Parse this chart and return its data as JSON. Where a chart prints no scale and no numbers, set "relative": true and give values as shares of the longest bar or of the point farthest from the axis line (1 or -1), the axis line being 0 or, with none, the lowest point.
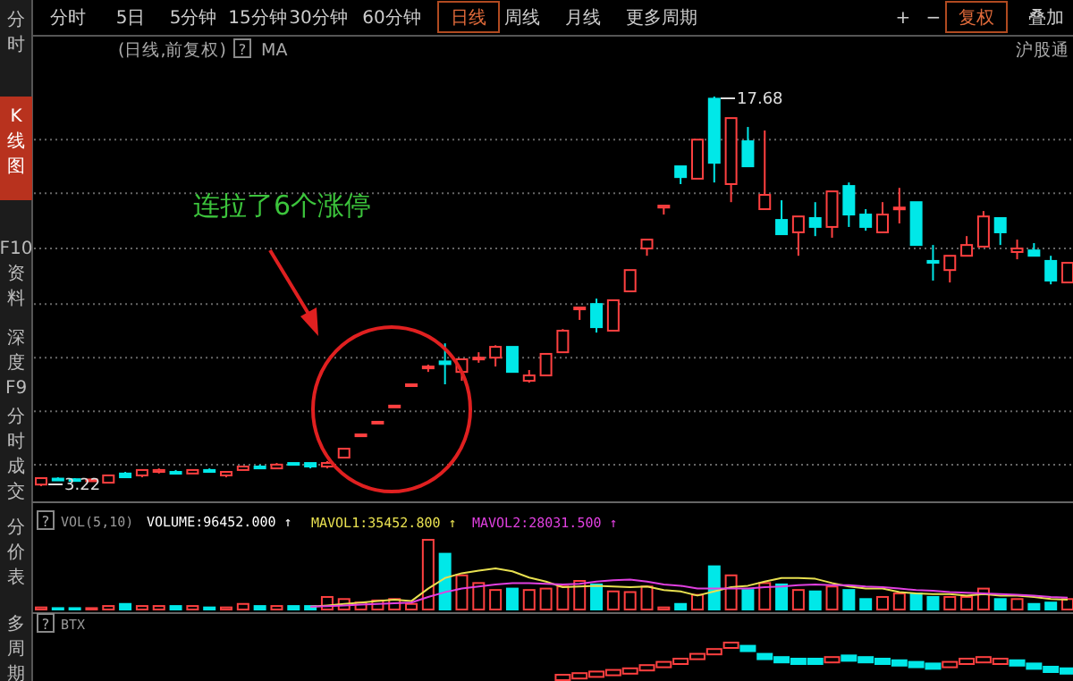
{
  "chart_data": [
    {
      "type": "candlestick",
      "categories": [
        null,
        null,
        null,
        null,
        null,
        null,
        null,
        null,
        null,
        null,
        null,
        null,
        null,
        null,
        null,
        null,
        null,
        null,
        null,
        null,
        null,
        null,
        null,
        null,
        null,
        null,
        null,
        null,
        null,
        null,
        null,
        null,
        null,
        null,
        null,
        null,
        null,
        null,
        null,
        null,
        null,
        null,
        null,
        null,
        null,
        null,
        null,
        null,
        null,
        null,
        null,
        null,
        null,
        null,
        null,
        null,
        null,
        null,
        null,
        null,
        null,
        null
      ],
      "ohlc": [
        [
          3.28,
          3.55,
          3.22,
          3.52
        ],
        [
          3.5,
          3.55,
          3.45,
          3.48
        ],
        [
          3.48,
          3.52,
          3.42,
          3.45
        ],
        [
          3.45,
          3.5,
          3.4,
          3.47
        ],
        [
          3.35,
          3.62,
          3.35,
          3.62
        ],
        [
          3.69,
          3.75,
          3.55,
          3.55
        ],
        [
          3.62,
          3.82,
          3.55,
          3.82
        ],
        [
          3.75,
          3.88,
          3.69,
          3.82
        ],
        [
          3.75,
          3.82,
          3.69,
          3.69
        ],
        [
          3.69,
          3.82,
          3.69,
          3.82
        ],
        [
          3.82,
          3.88,
          3.75,
          3.75
        ],
        [
          3.62,
          3.75,
          3.55,
          3.75
        ],
        [
          3.82,
          3.95,
          3.82,
          3.95
        ],
        [
          3.95,
          4.02,
          3.88,
          3.88
        ],
        [
          3.88,
          4.08,
          3.88,
          4.02
        ],
        [
          4.08,
          4.08,
          4.02,
          4.02
        ],
        [
          4.08,
          4.08,
          3.88,
          3.95
        ],
        [
          3.95,
          4.15,
          3.88,
          4.08
        ],
        [
          4.28,
          4.61,
          4.28,
          4.61
        ],
        [
          5.14,
          5.14,
          5.14,
          5.14
        ],
        [
          5.61,
          5.61,
          5.61,
          5.61
        ],
        [
          6.21,
          6.21,
          6.21,
          6.21
        ],
        [
          7.0,
          7.0,
          7.0,
          7.0
        ],
        [
          7.6,
          7.73,
          7.46,
          7.66
        ],
        [
          7.85,
          8.52,
          7.0,
          7.75
        ],
        [
          7.46,
          7.93,
          7.13,
          7.93
        ],
        [
          7.93,
          8.19,
          7.8,
          7.99
        ],
        [
          7.99,
          8.45,
          7.66,
          8.39
        ],
        [
          8.39,
          8.39,
          7.46,
          7.46
        ],
        [
          7.13,
          7.53,
          7.06,
          7.33
        ],
        [
          7.33,
          8.13,
          7.33,
          8.13
        ],
        [
          8.19,
          9.05,
          8.19,
          8.99
        ],
        [
          9.79,
          9.85,
          9.39,
          9.85
        ],
        [
          9.98,
          10.18,
          8.92,
          9.12
        ],
        [
          8.99,
          10.12,
          8.99,
          10.12
        ],
        [
          10.45,
          11.24,
          10.45,
          11.24
        ],
        [
          12.04,
          12.37,
          11.77,
          12.37
        ],
        [
          13.56,
          13.63,
          13.3,
          13.63
        ],
        [
          15.09,
          15.09,
          14.43,
          14.69
        ],
        [
          14.63,
          16.08,
          14.63,
          16.08
        ],
        [
          17.6,
          17.68,
          14.49,
          15.22
        ],
        [
          14.43,
          16.88,
          13.76,
          16.88
        ],
        [
          16.02,
          16.55,
          15.09,
          15.09
        ],
        [
          13.5,
          16.42,
          13.5,
          14.03
        ],
        [
          13.1,
          13.83,
          12.57,
          12.57
        ],
        [
          12.64,
          13.23,
          11.77,
          13.23
        ],
        [
          13.17,
          13.76,
          12.5,
          12.84
        ],
        [
          12.84,
          14.16,
          12.44,
          14.16
        ],
        [
          14.36,
          14.49,
          12.84,
          13.3
        ],
        [
          13.3,
          13.5,
          12.7,
          12.84
        ],
        [
          12.64,
          13.76,
          12.64,
          13.3
        ],
        [
          13.5,
          14.29,
          12.97,
          13.56
        ],
        [
          13.76,
          13.76,
          12.17,
          12.17
        ],
        [
          11.58,
          12.17,
          10.85,
          11.51
        ],
        [
          11.24,
          11.77,
          10.78,
          11.77
        ],
        [
          11.77,
          12.5,
          11.77,
          12.17
        ],
        [
          12.11,
          13.43,
          12.11,
          13.23
        ],
        [
          13.17,
          13.17,
          12.17,
          12.64
        ],
        [
          11.91,
          12.37,
          11.64,
          12.04
        ],
        [
          11.97,
          12.24,
          11.77,
          11.77
        ],
        [
          11.58,
          11.77,
          10.71,
          10.85
        ],
        [
          10.78,
          11.51,
          10.78,
          11.51
        ]
      ],
      "colors": [
        "#ff4040",
        "#00e8e8",
        "#00e8e8",
        "#ff4040",
        "#ff4040",
        "#00e8e8",
        "#ff4040",
        "#ff4040",
        "#00e8e8",
        "#ff4040",
        "#00e8e8",
        "#ff4040",
        "#ff4040",
        "#00e8e8",
        "#ff4040",
        "#00e8e8",
        "#00e8e8",
        "#ff4040",
        "#ff4040",
        "#ff4040",
        "#ff4040",
        "#ff4040",
        "#ff4040",
        "#ff4040",
        "#00e8e8",
        "#ff4040",
        "#ff4040",
        "#ff4040",
        "#00e8e8",
        "#ff4040",
        "#ff4040",
        "#ff4040",
        "#ff4040",
        "#00e8e8",
        "#ff4040",
        "#ff4040",
        "#ff4040",
        "#ff4040",
        "#00e8e8",
        "#ff4040",
        "#00e8e8",
        "#ff4040",
        "#00e8e8",
        "#ff4040",
        "#00e8e8",
        "#ff4040",
        "#00e8e8",
        "#ff4040",
        "#00e8e8",
        "#00e8e8",
        "#ff4040",
        "#ff4040",
        "#00e8e8",
        "#00e8e8",
        "#ff4040",
        "#ff4040",
        "#ff4040",
        "#00e8e8",
        "#ff4040",
        "#00e8e8",
        "#00e8e8",
        "#ff4040"
      ],
      "grid": "y",
      "yticks": [
        {
          "value": 4.02,
          "label": null
        },
        {
          "value": 6.0,
          "label": null
        },
        {
          "value": 7.99,
          "label": null
        },
        {
          "value": 9.98,
          "label": null
        },
        {
          "value": 12.04,
          "label": null
        },
        {
          "value": 14.09,
          "label": null
        },
        {
          "value": 16.08,
          "label": null
        }
      ],
      "annotations": [
        "分时",
        "5日",
        "5分钟",
        "15分钟",
        "30分钟",
        "60分钟",
        "日线",
        "周线",
        "月线",
        "更多周期",
        "+",
        "−",
        "复权",
        "叠加",
        "分时",
        "K线图",
        "F10资料",
        "深度F9",
        "分时成交",
        "分价表",
        "多周期",
        "(日线,前复权)",
        "?",
        "MA",
        "沪股通",
        "连拉了6个涨停",
        "3.22",
        "17.68"
      ]
    },
    {
      "type": "bar",
      "relative": true,
      "title": "VOL(5,10)",
      "annotations": [
        "?",
        "VOLUME:96452.000 ↑"
      ],
      "legend": "top left",
      "categories": [
        null,
        null,
        null,
        null,
        null,
        null,
        null,
        null,
        null,
        null,
        null,
        null,
        null,
        null,
        null,
        null,
        null,
        null,
        null,
        null,
        null,
        null,
        null,
        null,
        null,
        null,
        null,
        null,
        null,
        null,
        null,
        null,
        null,
        null,
        null,
        null,
        null,
        null,
        null,
        null,
        null,
        null,
        null,
        null,
        null,
        null,
        null,
        null,
        null,
        null,
        null,
        null,
        null,
        null,
        null,
        null,
        null,
        null,
        null,
        null,
        null,
        null
      ],
      "series": [
        {
          "colors": [
            "#ff4040",
            "#00e8e8",
            "#00e8e8",
            "#ff4040",
            "#ff4040",
            "#00e8e8",
            "#ff4040",
            "#ff4040",
            "#00e8e8",
            "#ff4040",
            "#00e8e8",
            "#ff4040",
            "#ff4040",
            "#00e8e8",
            "#ff4040",
            "#00e8e8",
            "#00e8e8",
            "#ff4040",
            "#ff4040",
            "#ff4040",
            "#ff4040",
            "#ff4040",
            "#ff4040",
            "#ff4040",
            "#00e8e8",
            "#ff4040",
            "#ff4040",
            "#ff4040",
            "#00e8e8",
            "#ff4040",
            "#ff4040",
            "#ff4040",
            "#ff4040",
            "#00e8e8",
            "#ff4040",
            "#ff4040",
            "#ff4040",
            "#ff4040",
            "#00e8e8",
            "#ff4040",
            "#00e8e8",
            "#ff4040",
            "#00e8e8",
            "#ff4040",
            "#00e8e8",
            "#ff4040",
            "#00e8e8",
            "#ff4040",
            "#00e8e8",
            "#00e8e8",
            "#ff4040",
            "#ff4040",
            "#00e8e8",
            "#00e8e8",
            "#ff4040",
            "#ff4040",
            "#ff4040",
            "#00e8e8",
            "#ff4040",
            "#00e8e8",
            "#00e8e8",
            "#ff4040"
          ],
          "values": [
            0.03,
            0.02,
            0.02,
            0.02,
            0.05,
            0.08,
            0.05,
            0.05,
            0.05,
            0.05,
            0.03,
            0.03,
            0.08,
            0.05,
            0.05,
            0.05,
            0.05,
            0.18,
            0.15,
            0.1,
            0.13,
            0.15,
            0.08,
            1,
            0.8,
            0.49,
            0.38,
            0.28,
            0.3,
            0.28,
            0.3,
            0.33,
            0.41,
            0.36,
            0.26,
            0.25,
            0.33,
            0.03,
            0.08,
            0.21,
            0.62,
            0.49,
            0.28,
            0.38,
            0.36,
            0.28,
            0.26,
            0.33,
            0.28,
            0.15,
            0.18,
            0.23,
            0.23,
            0.18,
            0.18,
            0.18,
            0.3,
            0.15,
            0.15,
            0.08,
            0.1,
            0.15
          ]
        },
        {
          "type": "line",
          "name": "MAVOL1:35452.800 ↑",
          "color": "#e8e050",
          "values": [
            null,
            null,
            null,
            null,
            null,
            null,
            null,
            null,
            null,
            null,
            null,
            null,
            null,
            null,
            null,
            null,
            0.04,
            0.06,
            0.08,
            0.1,
            0.12,
            0.14,
            0.12,
            0.3,
            0.45,
            0.52,
            0.56,
            0.59,
            0.55,
            0.46,
            0.4,
            0.32,
            0.33,
            0.34,
            0.33,
            0.32,
            0.33,
            0.28,
            0.26,
            0.2,
            0.26,
            0.32,
            0.34,
            0.4,
            0.45,
            0.45,
            0.44,
            0.38,
            0.33,
            0.3,
            0.3,
            0.25,
            0.23,
            0.22,
            0.22,
            0.2,
            0.22,
            0.2,
            0.2,
            0.18,
            0.15,
            0.14
          ]
        },
        {
          "type": "line",
          "name": "MAVOL2:28031.500 ↑",
          "color": "#e040e0",
          "values": [
            null,
            null,
            null,
            null,
            null,
            null,
            null,
            null,
            null,
            null,
            null,
            null,
            null,
            null,
            null,
            null,
            0.04,
            0.05,
            0.06,
            0.07,
            0.08,
            0.09,
            0.1,
            0.18,
            0.25,
            0.3,
            0.33,
            0.36,
            0.38,
            0.38,
            0.37,
            0.36,
            0.37,
            0.4,
            0.42,
            0.43,
            0.4,
            0.36,
            0.34,
            0.3,
            0.3,
            0.3,
            0.3,
            0.32,
            0.33,
            0.35,
            0.36,
            0.35,
            0.35,
            0.33,
            0.32,
            0.3,
            0.28,
            0.27,
            0.25,
            0.24,
            0.23,
            0.22,
            0.21,
            0.2,
            0.18,
            0.17
          ]
        }
      ]
    },
    {
      "type": "scatter",
      "relative": true,
      "title": "BTX",
      "annotations": [
        "?"
      ],
      "marker": "square",
      "categories": [
        null,
        null,
        null,
        null,
        null,
        null,
        null,
        null,
        null,
        null,
        null,
        null,
        null,
        null,
        null,
        null,
        null,
        null,
        null,
        null,
        null,
        null,
        null,
        null,
        null,
        null,
        null,
        null,
        null,
        null,
        null,
        null,
        null,
        null,
        null,
        null,
        null,
        null,
        null,
        null,
        null,
        null,
        null,
        null,
        null,
        null,
        null,
        null,
        null,
        null,
        null,
        null,
        null,
        null,
        null,
        null,
        null,
        null,
        null,
        null,
        null,
        null
      ],
      "values": [
        null,
        null,
        null,
        null,
        null,
        null,
        null,
        null,
        null,
        null,
        null,
        null,
        null,
        null,
        null,
        null,
        null,
        null,
        null,
        null,
        null,
        null,
        null,
        null,
        null,
        null,
        null,
        null,
        null,
        null,
        null,
        0,
        0.05,
        0.1,
        0.15,
        0.2,
        0.3,
        0.4,
        0.5,
        0.65,
        0.8,
        1,
        0.9,
        0.65,
        0.55,
        0.5,
        0.5,
        0.55,
        0.6,
        0.55,
        0.5,
        0.45,
        0.4,
        0.35,
        0.4,
        0.5,
        0.55,
        0.5,
        0.45,
        0.35,
        0.25,
        0.2
      ],
      "colors": [
        null,
        null,
        null,
        null,
        null,
        null,
        null,
        null,
        null,
        null,
        null,
        null,
        null,
        null,
        null,
        null,
        null,
        null,
        null,
        null,
        null,
        null,
        null,
        null,
        null,
        null,
        null,
        null,
        null,
        null,
        null,
        "#ff4040",
        "#ff4040",
        "#ff4040",
        "#ff4040",
        "#ff4040",
        "#ff4040",
        "#ff4040",
        "#ff4040",
        "#ff4040",
        "#ff4040",
        "#ff4040",
        "#00e8e8",
        "#00e8e8",
        "#00e8e8",
        "#00e8e8",
        "#00e8e8",
        "#ff4040",
        "#00e8e8",
        "#00e8e8",
        "#00e8e8",
        "#00e8e8",
        "#00e8e8",
        "#00e8e8",
        "#ff4040",
        "#ff4040",
        "#ff4040",
        "#ff4040",
        "#00e8e8",
        "#00e8e8",
        "#00e8e8",
        "#00e8e8"
      ]
    }
  ]
}
